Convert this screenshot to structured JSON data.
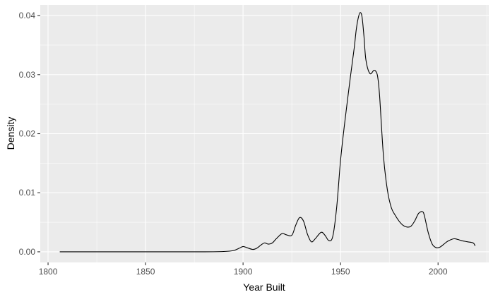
{
  "chart_data": {
    "type": "line",
    "title": "",
    "xlabel": "Year Built",
    "ylabel": "Density",
    "xlim": [
      1796,
      2026
    ],
    "ylim": [
      -0.0018,
      0.0418
    ],
    "x_ticks": [
      1800,
      1850,
      1900,
      1950,
      2000
    ],
    "y_ticks": [
      0.0,
      0.01,
      0.02,
      0.03,
      0.04
    ],
    "x_tick_labels": [
      "1800",
      "1850",
      "1900",
      "1950",
      "2000"
    ],
    "y_tick_labels": [
      "0.00",
      "0.01",
      "0.02",
      "0.03",
      "0.04"
    ],
    "grid": true,
    "legend": "none",
    "line_color": "#000000",
    "panel_color": "#ebebeb",
    "series": [
      {
        "x": [
          1806,
          1820,
          1840,
          1860,
          1880,
          1890,
          1895,
          1898,
          1900,
          1902,
          1905,
          1907,
          1909,
          1911,
          1913,
          1915,
          1917,
          1920,
          1922,
          1925,
          1927,
          1929,
          1931,
          1933,
          1935,
          1937,
          1940,
          1942,
          1944,
          1946,
          1948,
          1950,
          1952,
          1955,
          1957,
          1958,
          1959,
          1960,
          1961,
          1962,
          1963,
          1965,
          1967,
          1968,
          1969,
          1970,
          1972,
          1974,
          1976,
          1978,
          1980,
          1982,
          1984,
          1986,
          1988,
          1990,
          1992,
          1993,
          1995,
          1997,
          1999,
          2001,
          2003,
          2005,
          2008,
          2010,
          2012,
          2015,
          2018,
          2019
        ],
        "y": [
          0.0,
          0.0,
          0.0,
          0.0,
          0.0,
          5e-05,
          0.0002,
          0.0006,
          0.0009,
          0.0007,
          0.0004,
          0.0006,
          0.0011,
          0.0015,
          0.0013,
          0.0015,
          0.0022,
          0.0031,
          0.0029,
          0.0028,
          0.0045,
          0.0058,
          0.0052,
          0.003,
          0.0017,
          0.0022,
          0.0033,
          0.0028,
          0.0019,
          0.0026,
          0.0075,
          0.0155,
          0.0215,
          0.0295,
          0.0345,
          0.0375,
          0.0395,
          0.0405,
          0.0398,
          0.0365,
          0.0325,
          0.0302,
          0.0307,
          0.0306,
          0.0297,
          0.0265,
          0.0162,
          0.0105,
          0.0075,
          0.0062,
          0.0052,
          0.0045,
          0.0042,
          0.0043,
          0.0052,
          0.0065,
          0.0068,
          0.0061,
          0.0032,
          0.0013,
          0.0007,
          0.0008,
          0.0013,
          0.0018,
          0.0022,
          0.0021,
          0.0019,
          0.0017,
          0.0015,
          0.001
        ]
      }
    ]
  }
}
